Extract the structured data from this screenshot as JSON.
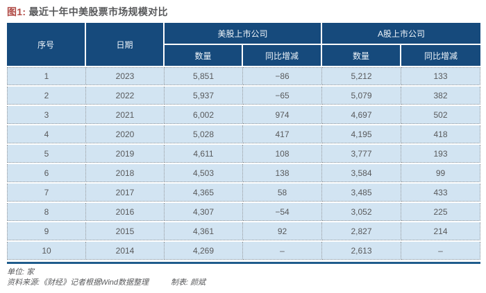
{
  "title": {
    "prefix": "图1:",
    "text": " 最近十年中美股票市场规模对比"
  },
  "chart_data": {
    "type": "table",
    "title": "图1: 最近十年中美股票市场规模对比",
    "unit_note": "单位: 家",
    "header": {
      "index": "序号",
      "date": "日期",
      "us_group": "美股上市公司",
      "a_group": "A股上市公司",
      "qty_us": "数量",
      "yoy_us": "同比增减",
      "qty_a": "数量",
      "yoy_a": "同比增减"
    },
    "row_keys": [
      "no",
      "year",
      "us_qty",
      "us_yoy",
      "a_qty",
      "a_yoy"
    ],
    "rows": [
      {
        "no": "1",
        "year": "2023",
        "us_qty": "5,851",
        "us_yoy": "−86",
        "a_qty": "5,212",
        "a_yoy": "133"
      },
      {
        "no": "2",
        "year": "2022",
        "us_qty": "5,937",
        "us_yoy": "−65",
        "a_qty": "5,079",
        "a_yoy": "382"
      },
      {
        "no": "3",
        "year": "2021",
        "us_qty": "6,002",
        "us_yoy": "974",
        "a_qty": "4,697",
        "a_yoy": "502"
      },
      {
        "no": "4",
        "year": "2020",
        "us_qty": "5,028",
        "us_yoy": "417",
        "a_qty": "4,195",
        "a_yoy": "418"
      },
      {
        "no": "5",
        "year": "2019",
        "us_qty": "4,611",
        "us_yoy": "108",
        "a_qty": "3,777",
        "a_yoy": "193"
      },
      {
        "no": "6",
        "year": "2018",
        "us_qty": "4,503",
        "us_yoy": "138",
        "a_qty": "3,584",
        "a_yoy": "99"
      },
      {
        "no": "7",
        "year": "2017",
        "us_qty": "4,365",
        "us_yoy": "58",
        "a_qty": "3,485",
        "a_yoy": "433"
      },
      {
        "no": "8",
        "year": "2016",
        "us_qty": "4,307",
        "us_yoy": "−54",
        "a_qty": "3,052",
        "a_yoy": "225"
      },
      {
        "no": "9",
        "year": "2015",
        "us_qty": "4,361",
        "us_yoy": "92",
        "a_qty": "2,827",
        "a_yoy": "214"
      },
      {
        "no": "10",
        "year": "2014",
        "us_qty": "4,269",
        "us_yoy": "–",
        "a_qty": "2,613",
        "a_yoy": "–"
      }
    ]
  },
  "footer": {
    "unit": "单位: 家",
    "source": "资料来源:《财经》记者根据Wind数据整理",
    "creator": "制表: 颜斌"
  },
  "colors": {
    "header_bg": "#164a7c",
    "row_bg": "#d2e4f2",
    "title_accent": "#b04a45",
    "body_text": "#58595b",
    "bottom_rule": "#1f5c8c"
  }
}
